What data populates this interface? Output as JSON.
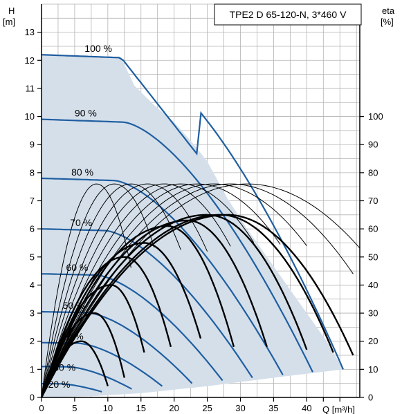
{
  "chart_data": {
    "type": "line",
    "title": "TPE2 D 65-120-N, 3*460 V",
    "left_axis": {
      "label_line1": "H",
      "label_line2": "[m]",
      "ticks": [
        "0",
        "1",
        "2",
        "3",
        "4",
        "5",
        "6",
        "7",
        "8",
        "9",
        "10",
        "11",
        "12",
        "13"
      ],
      "ylim": [
        0,
        14
      ]
    },
    "right_axis": {
      "label_line1": "eta",
      "label_line2": "[%]",
      "ticks": [
        "0",
        "10",
        "20",
        "30",
        "40",
        "50",
        "60",
        "70",
        "80",
        "90",
        "100"
      ],
      "ylim": [
        0,
        140
      ]
    },
    "x_axis": {
      "ticks": [
        "0",
        "5",
        "10",
        "15",
        "20",
        "25",
        "30",
        "35",
        "40"
      ],
      "label": "Q [m³/h]",
      "xlim": [
        0,
        48
      ]
    },
    "grid": true,
    "colors": {
      "head_curve": "#1f5ea0",
      "envelope_fill": "#d4dfea",
      "eff_thin": "#000000",
      "eff_bold": "#000000",
      "grid": "#b3b3b3"
    },
    "speed_labels": [
      "100 %",
      "90 %",
      "80 %",
      "70 %",
      "60 %",
      "50 %",
      "40 %",
      "30 %",
      "20 %"
    ],
    "series": [
      {
        "name": "100 %",
        "shutoff_head": 12.2,
        "end_q": 45.5,
        "end_h": 1.0
      },
      {
        "name": "90 %",
        "shutoff_head": 9.9,
        "end_q": 40.9,
        "end_h": 0.9
      },
      {
        "name": "80 %",
        "shutoff_head": 7.8,
        "end_q": 36.4,
        "end_h": 0.8
      },
      {
        "name": "70 %",
        "shutoff_head": 6.0,
        "end_q": 31.8,
        "end_h": 0.7
      },
      {
        "name": "60 %",
        "shutoff_head": 4.4,
        "end_q": 27.3,
        "end_h": 0.6
      },
      {
        "name": "50 %",
        "shutoff_head": 3.05,
        "end_q": 22.7,
        "end_h": 0.5
      },
      {
        "name": "40 %",
        "shutoff_head": 1.95,
        "end_q": 18.2,
        "end_h": 0.4
      },
      {
        "name": "30 %",
        "shutoff_head": 1.1,
        "end_q": 13.6,
        "end_h": 0.3
      },
      {
        "name": "20 %",
        "shutoff_head": 0.49,
        "end_q": 9.1,
        "end_h": 0.2
      }
    ],
    "envelope": {
      "top": [
        [
          0,
          12.2
        ],
        [
          12,
          12.1
        ],
        [
          14,
          11.1
        ],
        [
          17,
          10.4
        ],
        [
          20,
          9.8
        ],
        [
          23,
          9.0
        ],
        [
          25,
          8.4
        ],
        [
          28,
          7.1
        ],
        [
          31,
          6.0
        ],
        [
          34,
          5.0
        ],
        [
          37,
          4.0
        ],
        [
          40,
          3.0
        ],
        [
          43,
          2.0
        ],
        [
          45.5,
          1.0
        ]
      ],
      "bottom": [
        [
          45.5,
          1.0
        ],
        [
          35,
          0.7
        ],
        [
          25,
          0.4
        ],
        [
          15,
          0.15
        ],
        [
          8,
          0.05
        ],
        [
          0,
          0
        ]
      ]
    },
    "efficiency_thin": [
      {
        "peak_eta": 76,
        "peak_q": 8.3,
        "end_q": 13.5
      },
      {
        "peak_eta": 76,
        "peak_q": 11.0,
        "end_q": 17.0
      },
      {
        "peak_eta": 76,
        "peak_q": 13.5,
        "end_q": 21.0
      },
      {
        "peak_eta": 76,
        "peak_q": 16.0,
        "end_q": 25.0
      },
      {
        "peak_eta": 76,
        "peak_q": 18.5,
        "end_q": 28.5
      },
      {
        "peak_eta": 76,
        "peak_q": 21.0,
        "end_q": 32.0
      },
      {
        "peak_eta": 76,
        "peak_q": 23.5,
        "end_q": 36.0
      },
      {
        "peak_eta": 76,
        "peak_q": 26.0,
        "end_q": 40.0
      },
      {
        "peak_eta": 76,
        "peak_q": 28.5,
        "end_q": 47.0
      },
      {
        "peak_eta": 76,
        "peak_q": 31.0,
        "end_q": 48.0
      }
    ],
    "efficiency_bold": [
      {
        "peak_eta": 20,
        "peak_q": 6.0,
        "end_q": 10.0,
        "end_eta": 4
      },
      {
        "peak_eta": 30,
        "peak_q": 8.0,
        "end_q": 12.5,
        "end_eta": 7
      },
      {
        "peak_eta": 40,
        "peak_q": 10.5,
        "end_q": 15.5,
        "end_eta": 16
      },
      {
        "peak_eta": 50,
        "peak_q": 12.5,
        "end_q": 19.5,
        "end_eta": 18
      },
      {
        "peak_eta": 55,
        "peak_q": 15.5,
        "end_q": 24.0,
        "end_eta": 21
      },
      {
        "peak_eta": 61,
        "peak_q": 19.0,
        "end_q": 29.0,
        "end_eta": 18
      },
      {
        "peak_eta": 63,
        "peak_q": 22.0,
        "end_q": 34.0,
        "end_eta": 18
      },
      {
        "peak_eta": 65,
        "peak_q": 25.0,
        "end_q": 40.0,
        "end_eta": 17
      },
      {
        "peak_eta": 65,
        "peak_q": 27.0,
        "end_q": 44.0,
        "end_eta": 16
      },
      {
        "peak_eta": 65,
        "peak_q": 28.0,
        "end_q": 47.0,
        "end_eta": 15
      }
    ]
  }
}
